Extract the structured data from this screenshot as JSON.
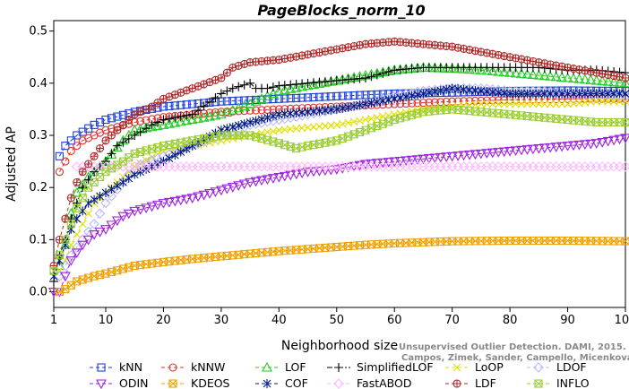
{
  "chart_data": {
    "type": "line",
    "title": "PageBlocks_norm_10",
    "xlabel": "Neighborhood size",
    "ylabel": "Adjusted AP",
    "xlim": [
      1,
      100
    ],
    "ylim": [
      -0.03,
      0.52
    ],
    "xticks": [
      1,
      10,
      20,
      30,
      40,
      50,
      60,
      70,
      80,
      90,
      100
    ],
    "yticks": [
      0.0,
      0.1,
      0.2,
      0.3,
      0.4,
      0.5
    ],
    "ytick_labels": [
      "0.0",
      "0.1",
      "0.2",
      "0.3",
      "0.4",
      "0.5"
    ],
    "grid": false,
    "legend_position": "bottom",
    "watermark": [
      "Unsupervised Outlier Detection. DAMI, 2015.",
      "Campos, Zimek, Sander, Campello, Micenkova, Schubert, Assent, Houle"
    ],
    "series": [
      {
        "name": "kNN",
        "color": "#1f3fd6",
        "marker": "square",
        "dash": "4,3",
        "points": [
          [
            2,
            0.26
          ],
          [
            3,
            0.28
          ],
          [
            5,
            0.3
          ],
          [
            8,
            0.32
          ],
          [
            10,
            0.33
          ],
          [
            15,
            0.345
          ],
          [
            20,
            0.355
          ],
          [
            30,
            0.365
          ],
          [
            40,
            0.37
          ],
          [
            50,
            0.375
          ],
          [
            60,
            0.38
          ],
          [
            70,
            0.382
          ],
          [
            80,
            0.385
          ],
          [
            90,
            0.386
          ],
          [
            100,
            0.385
          ]
        ]
      },
      {
        "name": "kNNW",
        "color": "#e33030",
        "marker": "circle",
        "dash": "4,3",
        "points": [
          [
            2,
            0.23
          ],
          [
            3,
            0.25
          ],
          [
            4,
            0.27
          ],
          [
            6,
            0.29
          ],
          [
            8,
            0.3
          ],
          [
            10,
            0.31
          ],
          [
            15,
            0.325
          ],
          [
            20,
            0.335
          ],
          [
            30,
            0.345
          ],
          [
            40,
            0.35
          ],
          [
            50,
            0.355
          ],
          [
            60,
            0.36
          ],
          [
            70,
            0.365
          ],
          [
            80,
            0.368
          ],
          [
            90,
            0.37
          ],
          [
            100,
            0.37
          ]
        ]
      },
      {
        "name": "LOF",
        "color": "#22cc22",
        "marker": "triangle",
        "dash": "4,3",
        "points": [
          [
            2,
            0.05
          ],
          [
            3,
            0.09
          ],
          [
            4,
            0.15
          ],
          [
            5,
            0.19
          ],
          [
            7,
            0.22
          ],
          [
            10,
            0.25
          ],
          [
            13,
            0.29
          ],
          [
            15,
            0.31
          ],
          [
            20,
            0.32
          ],
          [
            25,
            0.33
          ],
          [
            30,
            0.34
          ],
          [
            35,
            0.36
          ],
          [
            38,
            0.375
          ],
          [
            40,
            0.385
          ],
          [
            45,
            0.395
          ],
          [
            50,
            0.405
          ],
          [
            55,
            0.415
          ],
          [
            60,
            0.425
          ],
          [
            65,
            0.43
          ],
          [
            70,
            0.428
          ],
          [
            75,
            0.425
          ],
          [
            80,
            0.42
          ],
          [
            85,
            0.415
          ],
          [
            90,
            0.41
          ],
          [
            95,
            0.405
          ],
          [
            100,
            0.4
          ]
        ]
      },
      {
        "name": "SimplifiedLOF",
        "color": "#000000",
        "marker": "plus",
        "dash": "6,2,2,2",
        "points": [
          [
            1,
            0.02
          ],
          [
            2,
            0.07
          ],
          [
            3,
            0.1
          ],
          [
            4,
            0.14
          ],
          [
            5,
            0.17
          ],
          [
            6,
            0.2
          ],
          [
            8,
            0.23
          ],
          [
            10,
            0.25
          ],
          [
            12,
            0.28
          ],
          [
            15,
            0.3
          ],
          [
            18,
            0.32
          ],
          [
            20,
            0.33
          ],
          [
            25,
            0.34
          ],
          [
            30,
            0.38
          ],
          [
            32,
            0.39
          ],
          [
            35,
            0.4
          ],
          [
            36,
            0.39
          ],
          [
            38,
            0.39
          ],
          [
            40,
            0.395
          ],
          [
            45,
            0.4
          ],
          [
            50,
            0.405
          ],
          [
            55,
            0.41
          ],
          [
            60,
            0.425
          ],
          [
            65,
            0.43
          ],
          [
            70,
            0.43
          ],
          [
            75,
            0.43
          ],
          [
            80,
            0.43
          ],
          [
            85,
            0.43
          ],
          [
            90,
            0.425
          ],
          [
            95,
            0.425
          ],
          [
            100,
            0.42
          ]
        ]
      },
      {
        "name": "LoOP",
        "color": "#e0e000",
        "marker": "x",
        "dash": "4,3",
        "points": [
          [
            2,
            0.04
          ],
          [
            3,
            0.06
          ],
          [
            4,
            0.09
          ],
          [
            6,
            0.13
          ],
          [
            8,
            0.17
          ],
          [
            10,
            0.19
          ],
          [
            13,
            0.22
          ],
          [
            15,
            0.24
          ],
          [
            20,
            0.27
          ],
          [
            25,
            0.28
          ],
          [
            30,
            0.29
          ],
          [
            35,
            0.3
          ],
          [
            40,
            0.31
          ],
          [
            45,
            0.315
          ],
          [
            50,
            0.32
          ],
          [
            55,
            0.33
          ],
          [
            60,
            0.34
          ],
          [
            65,
            0.35
          ],
          [
            70,
            0.355
          ],
          [
            75,
            0.36
          ],
          [
            80,
            0.36
          ],
          [
            85,
            0.36
          ],
          [
            90,
            0.36
          ],
          [
            95,
            0.365
          ],
          [
            100,
            0.365
          ]
        ]
      },
      {
        "name": "LDOF",
        "color": "#b8b8ff",
        "marker": "diamond",
        "dash": "4,3",
        "points": [
          [
            2,
            0.03
          ],
          [
            3,
            0.05
          ],
          [
            4,
            0.07
          ],
          [
            6,
            0.1
          ],
          [
            8,
            0.13
          ],
          [
            10,
            0.17
          ],
          [
            13,
            0.21
          ],
          [
            15,
            0.24
          ],
          [
            20,
            0.26
          ],
          [
            25,
            0.28
          ],
          [
            30,
            0.3
          ],
          [
            35,
            0.32
          ],
          [
            40,
            0.33
          ],
          [
            45,
            0.34
          ],
          [
            50,
            0.35
          ],
          [
            55,
            0.36
          ],
          [
            60,
            0.375
          ],
          [
            65,
            0.385
          ],
          [
            70,
            0.39
          ],
          [
            75,
            0.39
          ],
          [
            80,
            0.385
          ],
          [
            85,
            0.385
          ],
          [
            90,
            0.38
          ],
          [
            95,
            0.38
          ],
          [
            100,
            0.375
          ]
        ]
      },
      {
        "name": "ODIN",
        "color": "#9c1fe0",
        "marker": "invtriangle",
        "dash": "4,3",
        "points": [
          [
            1,
            0.0
          ],
          [
            2,
            0.0
          ],
          [
            3,
            0.03
          ],
          [
            4,
            0.06
          ],
          [
            6,
            0.09
          ],
          [
            8,
            0.11
          ],
          [
            10,
            0.12
          ],
          [
            13,
            0.145
          ],
          [
            15,
            0.155
          ],
          [
            20,
            0.17
          ],
          [
            25,
            0.18
          ],
          [
            30,
            0.195
          ],
          [
            35,
            0.21
          ],
          [
            40,
            0.22
          ],
          [
            45,
            0.23
          ],
          [
            50,
            0.235
          ],
          [
            55,
            0.245
          ],
          [
            60,
            0.25
          ],
          [
            65,
            0.255
          ],
          [
            70,
            0.26
          ],
          [
            75,
            0.265
          ],
          [
            80,
            0.27
          ],
          [
            85,
            0.275
          ],
          [
            90,
            0.28
          ],
          [
            95,
            0.285
          ],
          [
            100,
            0.295
          ]
        ]
      },
      {
        "name": "KDEOS",
        "color": "#f0a000",
        "marker": "hatchsq",
        "dash": "4,3",
        "points": [
          [
            2,
            0.0
          ],
          [
            3,
            0.005
          ],
          [
            5,
            0.02
          ],
          [
            8,
            0.03
          ],
          [
            10,
            0.035
          ],
          [
            15,
            0.05
          ],
          [
            20,
            0.057
          ],
          [
            25,
            0.063
          ],
          [
            30,
            0.068
          ],
          [
            35,
            0.073
          ],
          [
            40,
            0.078
          ],
          [
            45,
            0.082
          ],
          [
            50,
            0.086
          ],
          [
            55,
            0.09
          ],
          [
            60,
            0.093
          ],
          [
            65,
            0.095
          ],
          [
            70,
            0.097
          ],
          [
            80,
            0.098
          ],
          [
            90,
            0.098
          ],
          [
            100,
            0.097
          ]
        ]
      },
      {
        "name": "COF",
        "color": "#001a80",
        "marker": "asterisk",
        "dash": "4,3",
        "points": [
          [
            1,
            0.03
          ],
          [
            2,
            0.06
          ],
          [
            3,
            0.09
          ],
          [
            4,
            0.12
          ],
          [
            5,
            0.14
          ],
          [
            7,
            0.17
          ],
          [
            10,
            0.19
          ],
          [
            13,
            0.21
          ],
          [
            15,
            0.225
          ],
          [
            20,
            0.25
          ],
          [
            25,
            0.28
          ],
          [
            30,
            0.31
          ],
          [
            35,
            0.325
          ],
          [
            40,
            0.34
          ],
          [
            45,
            0.345
          ],
          [
            50,
            0.35
          ],
          [
            55,
            0.36
          ],
          [
            60,
            0.37
          ],
          [
            65,
            0.38
          ],
          [
            70,
            0.39
          ],
          [
            75,
            0.385
          ],
          [
            80,
            0.38
          ],
          [
            85,
            0.38
          ],
          [
            90,
            0.38
          ],
          [
            95,
            0.38
          ],
          [
            100,
            0.38
          ]
        ]
      },
      {
        "name": "FastABOD",
        "color": "#ffb8ff",
        "marker": "diamond",
        "dash": "4,3",
        "points": [
          [
            5,
            0.24
          ],
          [
            10,
            0.24
          ],
          [
            20,
            0.24
          ],
          [
            30,
            0.24
          ],
          [
            40,
            0.24
          ],
          [
            50,
            0.24
          ],
          [
            60,
            0.24
          ],
          [
            70,
            0.24
          ],
          [
            80,
            0.24
          ],
          [
            90,
            0.24
          ],
          [
            100,
            0.24
          ]
        ]
      },
      {
        "name": "LDF",
        "color": "#b02828",
        "marker": "circleplus",
        "dash": "4,3",
        "points": [
          [
            1,
            0.05
          ],
          [
            2,
            0.1
          ],
          [
            3,
            0.14
          ],
          [
            4,
            0.18
          ],
          [
            5,
            0.21
          ],
          [
            6,
            0.23
          ],
          [
            8,
            0.26
          ],
          [
            10,
            0.29
          ],
          [
            13,
            0.32
          ],
          [
            15,
            0.34
          ],
          [
            18,
            0.355
          ],
          [
            20,
            0.37
          ],
          [
            25,
            0.39
          ],
          [
            30,
            0.41
          ],
          [
            32,
            0.43
          ],
          [
            35,
            0.44
          ],
          [
            40,
            0.445
          ],
          [
            45,
            0.455
          ],
          [
            50,
            0.465
          ],
          [
            55,
            0.475
          ],
          [
            60,
            0.48
          ],
          [
            65,
            0.475
          ],
          [
            70,
            0.47
          ],
          [
            75,
            0.46
          ],
          [
            80,
            0.45
          ],
          [
            85,
            0.44
          ],
          [
            90,
            0.43
          ],
          [
            95,
            0.42
          ],
          [
            100,
            0.41
          ]
        ]
      },
      {
        "name": "INFLO",
        "color": "#9acd32",
        "marker": "hatchsq",
        "dash": "4,3",
        "points": [
          [
            1,
            0.04
          ],
          [
            2,
            0.07
          ],
          [
            3,
            0.1
          ],
          [
            5,
            0.16
          ],
          [
            7,
            0.2
          ],
          [
            10,
            0.23
          ],
          [
            13,
            0.25
          ],
          [
            15,
            0.265
          ],
          [
            20,
            0.28
          ],
          [
            25,
            0.29
          ],
          [
            30,
            0.3
          ],
          [
            35,
            0.3
          ],
          [
            40,
            0.285
          ],
          [
            43,
            0.275
          ],
          [
            45,
            0.28
          ],
          [
            50,
            0.29
          ],
          [
            55,
            0.31
          ],
          [
            60,
            0.33
          ],
          [
            65,
            0.345
          ],
          [
            70,
            0.35
          ],
          [
            75,
            0.345
          ],
          [
            80,
            0.34
          ],
          [
            85,
            0.335
          ],
          [
            90,
            0.33
          ],
          [
            95,
            0.325
          ],
          [
            100,
            0.325
          ]
        ]
      }
    ]
  }
}
